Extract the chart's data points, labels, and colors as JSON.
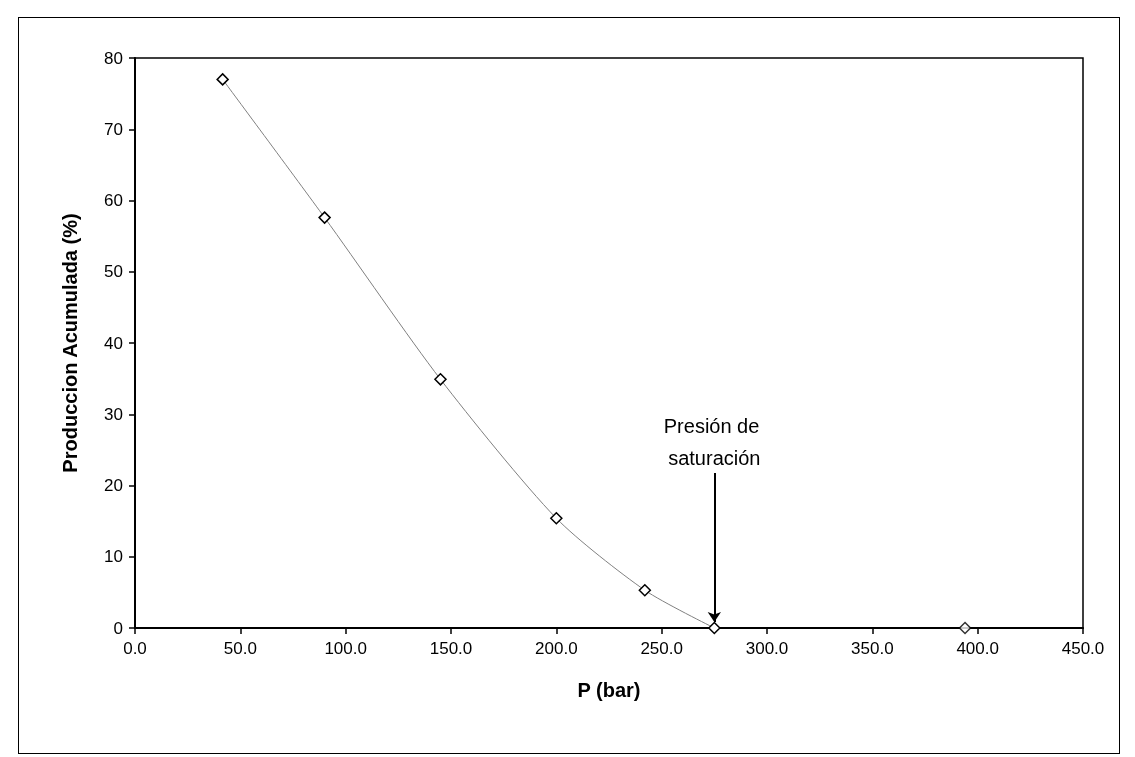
{
  "chart_data": {
    "type": "line",
    "xlabel": "P (bar)",
    "ylabel": "Produccion Acumulada (%)",
    "series": [
      {
        "color": "#808080",
        "x": [
          41.6,
          90,
          145,
          200,
          242,
          275
        ],
        "values": [
          77,
          57.6,
          34.9,
          15.4,
          5.3,
          0
        ]
      },
      {
        "type": "scatter",
        "color": "#000000",
        "x": [
          394
        ],
        "values": [
          0
        ]
      }
    ],
    "xlim": [
      0,
      450
    ],
    "xticks": [
      {
        "value": 0,
        "label": "0.0"
      },
      {
        "value": 50,
        "label": "50.0"
      },
      {
        "value": 100,
        "label": "100.0"
      },
      {
        "value": 150,
        "label": "150.0"
      },
      {
        "value": 200,
        "label": "200.0"
      },
      {
        "value": 250,
        "label": "250.0"
      },
      {
        "value": 300,
        "label": "300.0"
      },
      {
        "value": 350,
        "label": "350.0"
      },
      {
        "value": 400,
        "label": "400.0"
      },
      {
        "value": 450,
        "label": "450.0"
      }
    ],
    "ylim": [
      0,
      80
    ],
    "yticks": [
      0,
      10,
      20,
      30,
      40,
      50,
      60,
      70,
      80
    ],
    "annotations": [
      {
        "text": "Presión de saturación",
        "x": 275,
        "y": 0
      }
    ],
    "marker": "diamond",
    "grid": false
  }
}
